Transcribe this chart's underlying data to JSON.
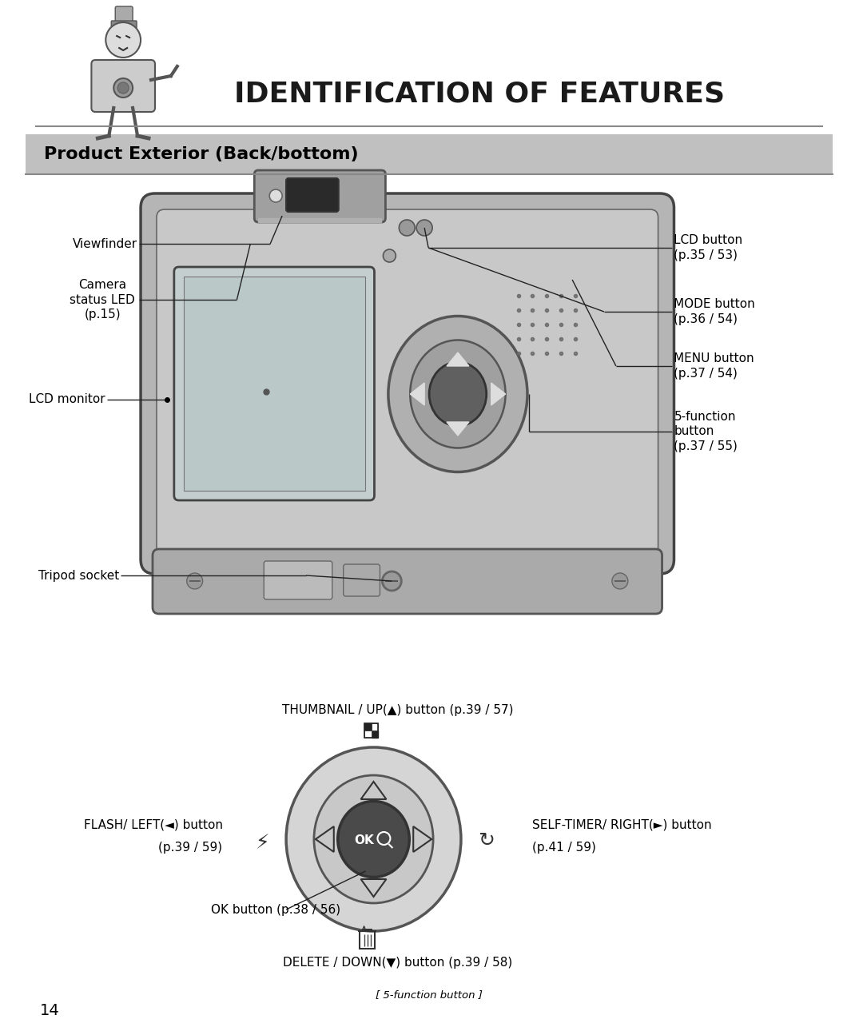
{
  "title": "IDENTIFICATION OF FEATURES",
  "section_title": "Product Exterior (Back/bottom)",
  "page_bg": "#ffffff",
  "section_bg": "#c0c0c0",
  "section_text_color": "#000000",
  "title_color": "#1a1a1a",
  "page_number": "14",
  "footer_note": "[ 5-function button ]",
  "nav_top": "THUMBNAIL / UP(▲) button (p.39 / 57)",
  "nav_bottom": "DELETE / DOWN(▼) button (p.39 / 58)",
  "nav_left1": "FLASH/ LEFT(◄) button",
  "nav_left2": "(p.39 / 59)",
  "nav_right1": "SELF-TIMER/ RIGHT(►) button",
  "nav_right2": "(p.41 / 59)",
  "nav_ok": "OK button (p.38 / 56)",
  "label_viewfinder": "Viewfinder",
  "label_camera_led": "Camera\nstatus LED\n(p.15)",
  "label_lcd_monitor": "LCD monitor",
  "label_tripod": "Tripod socket",
  "label_lcd_btn": "LCD button\n(p.35 / 53)",
  "label_mode": "MODE button\n(p.36 / 54)",
  "label_menu": "MENU button\n(p.37 / 54)",
  "label_5func": "5-function\nbutton\n(p.37 / 55)"
}
